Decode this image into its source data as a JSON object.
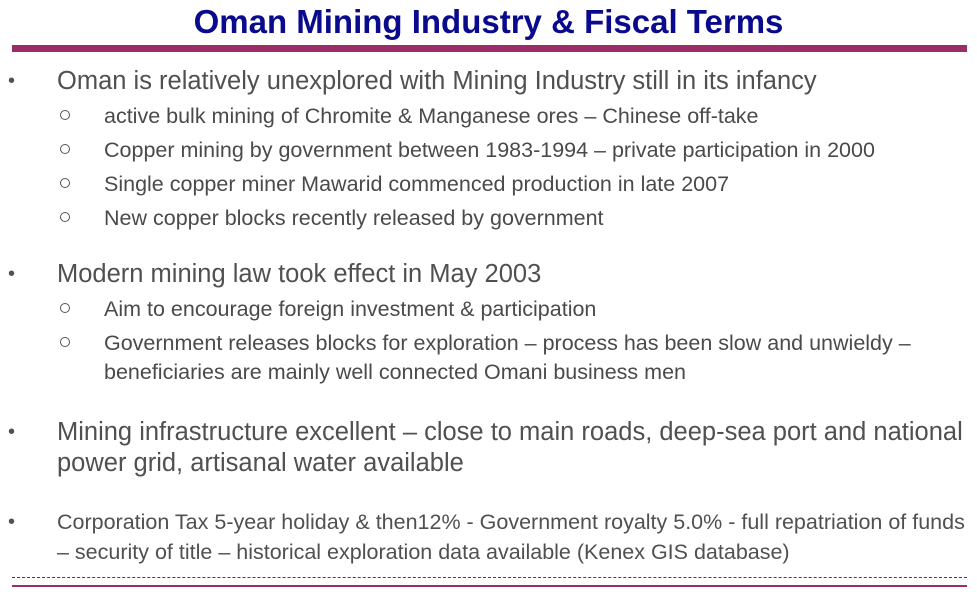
{
  "slide": {
    "title": "Oman Mining Industry & Fiscal Terms",
    "bullets": [
      {
        "text": "Oman is relatively unexplored with Mining Industry still in its infancy",
        "sub": [
          "active bulk mining of Chromite & Manganese ores – Chinese off-take",
          "Copper mining by government between 1983-1994 – private participation in 2000",
          "Single copper miner Mawarid commenced production in late 2007",
          "New copper blocks recently released by government"
        ]
      },
      {
        "text": "Modern mining law took effect in May 2003",
        "sub": [
          "Aim to encourage foreign investment & participation",
          "Government releases blocks for exploration – process has been slow and unwieldy – beneficiaries are mainly well connected Omani business men"
        ]
      },
      {
        "text": "Mining infrastructure excellent – close to main roads, deep-sea port and national power grid, artisanal water available",
        "sub": []
      },
      {
        "text": "Corporation Tax 5-year holiday & then12% - Government royalty 5.0% - full repatriation of funds – security of title – historical exploration data available (Kenex GIS database)",
        "sub": []
      }
    ],
    "bullet_marker": "•",
    "colors": {
      "title": "#0a0a8c",
      "rule": "#9b2d66",
      "body_text": "#505050"
    }
  }
}
